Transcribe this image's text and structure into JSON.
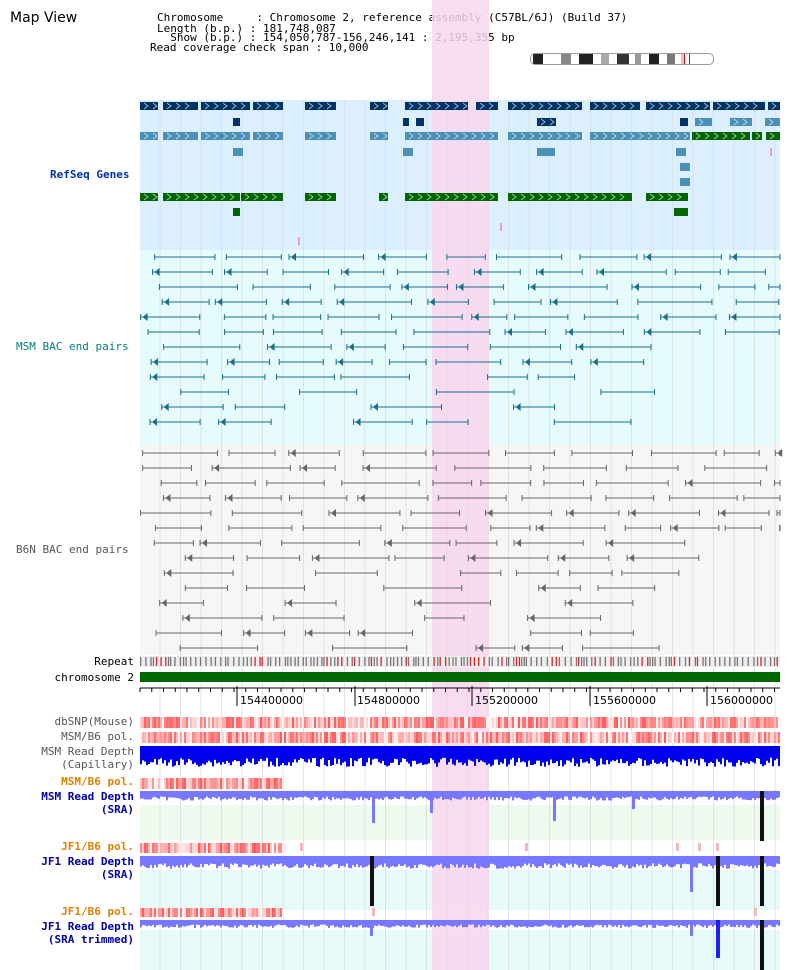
{
  "page": {
    "title": "Map View"
  },
  "header": {
    "chromosome_line": "Chromosome     : Chromosome 2, reference assembly (C57BL/6J) (Build 37)",
    "length_line": "Length (b.p.) : 181,748,087",
    "show_line": "  Show (b.p.) : 154,050,787-156,246,141 : 2,195,355 bp",
    "coverage_line": "Read coverage check span : 10,000"
  },
  "tracks": {
    "refseq": "RefSeq Genes",
    "msm_bac": "MSM BAC end pairs",
    "b6n_bac": "B6N BAC end pairs",
    "repeat": "Repeat",
    "chromosome": "chromosome 2",
    "dbsnp": "dbSNP(Mouse)",
    "msm_pol1": "MSM/B6 pol.",
    "msm_depth_cap_1": "MSM Read Depth",
    "msm_depth_cap_2": "(Capillary)",
    "msm_pol2": "MSM/B6 pol.",
    "msm_depth_sra_1": "MSM Read Depth",
    "msm_depth_sra_2": "(SRA)",
    "jf1_pol1": "JF1/B6 pol.",
    "jf1_depth_1": "JF1 Read Depth",
    "jf1_depth_2": "(SRA)",
    "jf1_pol2": "JF1/B6 pol.",
    "jf1_depth_trim_1": "JF1 Read Depth",
    "jf1_depth_trim_2": "(SRA trimmed)"
  },
  "axis": {
    "ticks": [
      "154400000",
      "154800000",
      "155200000",
      "155600000",
      "156000000"
    ]
  },
  "colors": {
    "refseq_bg": "#dcefff",
    "msm_bg": "#e6fcfc",
    "b6n_bg": "#f6f6f6",
    "highlight": "#f9d6ef",
    "gene_dark": "#003366",
    "gene_mid": "#4a90b8",
    "gene_green": "#006600",
    "msm_line": "#1a6e8a",
    "b6n_line": "#666666",
    "chromosome_bar": "#006600",
    "depth_blue": "#0000ee",
    "depth_light": "#7777ff"
  }
}
